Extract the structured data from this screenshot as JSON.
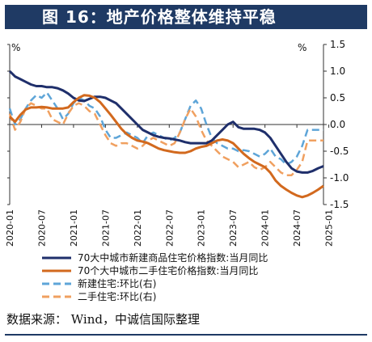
{
  "title": "图 16：地产价格整体维持平稳",
  "source": "数据来源： Wind，中诚信国际整理",
  "colors": {
    "navy": "#1f3a64",
    "dark_blue": "#1f2f6b",
    "orange": "#d2691e",
    "light_blue": "#5ea5d8",
    "light_orange": "#f0a060"
  },
  "chart_data": {
    "type": "line",
    "title": "",
    "left_axis_unit": "%",
    "right_axis_unit": "%",
    "left_ylim": [
      -1.5,
      1.5
    ],
    "right_ylim": [
      -1.5,
      1.5
    ],
    "right_ticks": [
      "1.5",
      "1.0",
      "0.5",
      "0.0",
      "-0.5",
      "-1.0",
      "-1.5"
    ],
    "x_ticks": [
      "2020-01",
      "2020-07",
      "2021-01",
      "2021-07",
      "2022-01",
      "2022-07",
      "2023-01",
      "2023-07",
      "2024-01",
      "2024-07",
      "2025-01"
    ],
    "x_start": "2020-01",
    "series": [
      {
        "name": "70大中城市新建商品住宅价格指数:当月同比",
        "axis": "left",
        "style": "solid",
        "color": "#1f2f6b",
        "values": [
          1.0,
          0.9,
          0.85,
          0.8,
          0.75,
          0.72,
          0.72,
          0.7,
          0.7,
          0.68,
          0.64,
          0.58,
          0.5,
          0.45,
          0.44,
          0.48,
          0.52,
          0.52,
          0.5,
          0.45,
          0.4,
          0.3,
          0.2,
          0.1,
          0.0,
          -0.1,
          -0.15,
          -0.2,
          -0.23,
          -0.25,
          -0.26,
          -0.28,
          -0.3,
          -0.33,
          -0.35,
          -0.35,
          -0.35,
          -0.35,
          -0.3,
          -0.2,
          -0.1,
          0.0,
          0.05,
          -0.05,
          -0.08,
          -0.08,
          -0.08,
          -0.1,
          -0.15,
          -0.25,
          -0.4,
          -0.55,
          -0.7,
          -0.82,
          -0.88,
          -0.9,
          -0.9,
          -0.87,
          -0.82,
          -0.78
        ]
      },
      {
        "name": "70个大中城市二手住宅价格指数:当月同比",
        "axis": "left",
        "style": "solid",
        "color": "#d2691e",
        "values": [
          0.15,
          0.05,
          0.18,
          0.28,
          0.32,
          0.32,
          0.33,
          0.32,
          0.3,
          0.3,
          0.3,
          0.32,
          0.42,
          0.5,
          0.55,
          0.54,
          0.5,
          0.42,
          0.3,
          0.18,
          0.05,
          -0.08,
          -0.18,
          -0.25,
          -0.3,
          -0.32,
          -0.35,
          -0.4,
          -0.45,
          -0.48,
          -0.5,
          -0.52,
          -0.53,
          -0.53,
          -0.5,
          -0.45,
          -0.42,
          -0.4,
          -0.35,
          -0.3,
          -0.28,
          -0.3,
          -0.35,
          -0.45,
          -0.55,
          -0.63,
          -0.7,
          -0.75,
          -0.8,
          -0.9,
          -1.05,
          -1.15,
          -1.22,
          -1.28,
          -1.33,
          -1.36,
          -1.33,
          -1.28,
          -1.22,
          -1.15
        ]
      },
      {
        "name": "新建住宅:环比(右)",
        "axis": "right",
        "style": "dashed",
        "color": "#5ea5d8",
        "values": [
          0.3,
          0.0,
          0.1,
          0.3,
          0.45,
          0.55,
          0.5,
          0.6,
          0.45,
          0.3,
          0.1,
          0.2,
          0.4,
          0.5,
          0.45,
          0.35,
          0.3,
          0.15,
          -0.1,
          -0.25,
          -0.25,
          -0.2,
          -0.15,
          -0.2,
          -0.25,
          -0.35,
          -0.2,
          -0.15,
          -0.2,
          -0.25,
          -0.3,
          -0.25,
          -0.15,
          0.1,
          0.35,
          0.45,
          0.3,
          0.0,
          -0.25,
          -0.35,
          -0.4,
          -0.45,
          -0.45,
          -0.5,
          -0.48,
          -0.5,
          -0.55,
          -0.6,
          -0.55,
          -0.45,
          -0.6,
          -0.65,
          -0.75,
          -0.7,
          -0.6,
          -0.4,
          -0.1,
          -0.1,
          -0.1,
          -0.1
        ]
      },
      {
        "name": "二手住宅:环比(右)",
        "axis": "right",
        "style": "dashed",
        "color": "#f0a060",
        "values": [
          0.2,
          -0.1,
          0.05,
          0.3,
          0.4,
          0.35,
          0.3,
          0.3,
          0.1,
          0.05,
          0.0,
          0.2,
          0.35,
          0.4,
          0.35,
          0.25,
          0.2,
          0.0,
          -0.2,
          -0.35,
          -0.4,
          -0.35,
          -0.35,
          -0.4,
          -0.45,
          -0.4,
          -0.3,
          -0.25,
          -0.3,
          -0.35,
          -0.4,
          -0.35,
          -0.15,
          0.1,
          0.3,
          0.15,
          -0.1,
          -0.3,
          -0.4,
          -0.5,
          -0.6,
          -0.65,
          -0.7,
          -0.8,
          -0.75,
          -0.7,
          -0.8,
          -0.85,
          -0.8,
          -0.7,
          -0.8,
          -0.9,
          -0.95,
          -0.95,
          -0.85,
          -0.7,
          -0.3,
          -0.3,
          -0.3,
          -0.3
        ]
      }
    ],
    "grid": false,
    "legend_position": "bottom"
  }
}
